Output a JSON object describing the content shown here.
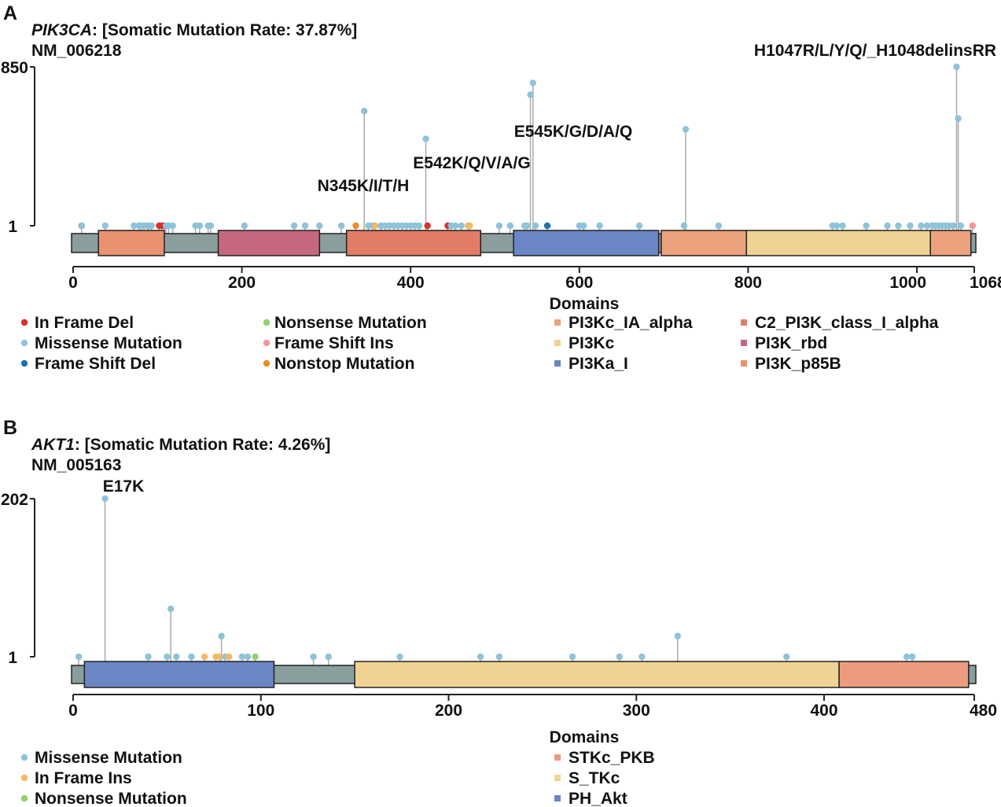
{
  "colors": {
    "missense": "#8ec3d9",
    "in_frame_del": "#d7312c",
    "frame_shift_del": "#1b75ac",
    "nonsense": "#95d06f",
    "frame_shift_ins": "#f4989a",
    "nonstop": "#f08a27",
    "in_frame_ins": "#f5b964",
    "backbone": "#8a9e9e",
    "stem": "#aaaaaa",
    "PI3Kc_IA_alpha": "#eca27c",
    "C2_PI3K_class_I_alpha": "#e17d66",
    "PI3Kc": "#f0d293",
    "PI3K_rbd": "#c5687f",
    "PI3Ka_I": "#6b86c5",
    "PI3K_p85B": "#ea926f",
    "STKc_PKB": "#eb9c7e",
    "S_TKc": "#f0d293",
    "PH_Akt": "#6b86c5"
  },
  "chart_data": [
    {
      "type": "lollipop",
      "panel": "A",
      "gene": "PIK3CA",
      "title_rest": ": [Somatic Mutation Rate: 37.87%]",
      "transcript": "NM_006218",
      "protein_length": 1068,
      "y_ticks": [
        "850",
        "1"
      ],
      "y_max": 850,
      "x_ticks": [
        "0",
        "200",
        "400",
        "600",
        "800",
        "1000",
        "1068"
      ],
      "x_tick_values": [
        0,
        200,
        400,
        600,
        800,
        1000,
        1068
      ],
      "domains": [
        {
          "name": "PI3K_p85B",
          "start": 30,
          "end": 108
        },
        {
          "name": "PI3K_rbd",
          "start": 172,
          "end": 292
        },
        {
          "name": "C2_PI3K_class_I_alpha",
          "start": 324,
          "end": 483
        },
        {
          "name": "PI3Ka_I",
          "start": 522,
          "end": 694
        },
        {
          "name": "PI3Kc_IA_alpha",
          "start": 697,
          "end": 798
        },
        {
          "name": "PI3Kc",
          "start": 798,
          "end": 1016
        },
        {
          "name": "PI3Kc_IA_alpha",
          "start": 1016,
          "end": 1064
        }
      ],
      "annotations": [
        {
          "label": "N345K/I/T/H",
          "pos": 345
        },
        {
          "label": "E542K/Q/V/A/G",
          "pos": 542
        },
        {
          "label": "E545K/G/D/A/Q",
          "pos": 545
        },
        {
          "label": "H1047R/L/Y/Q/_H1048delinsRR",
          "pos": 1047
        }
      ],
      "mutations": [
        {
          "pos": 10,
          "count": 1,
          "type": "in_frame_del"
        },
        {
          "pos": 10,
          "count": 1,
          "type": "missense"
        },
        {
          "pos": 38,
          "count": 1,
          "type": "missense"
        },
        {
          "pos": 72,
          "count": 1,
          "type": "missense"
        },
        {
          "pos": 78,
          "count": 1,
          "type": "missense"
        },
        {
          "pos": 81,
          "count": 1,
          "type": "missense"
        },
        {
          "pos": 84,
          "count": 1,
          "type": "missense"
        },
        {
          "pos": 88,
          "count": 1,
          "type": "missense"
        },
        {
          "pos": 90,
          "count": 1,
          "type": "missense"
        },
        {
          "pos": 93,
          "count": 1,
          "type": "missense"
        },
        {
          "pos": 102,
          "count": 1,
          "type": "in_frame_del"
        },
        {
          "pos": 105,
          "count": 1,
          "type": "in_frame_del"
        },
        {
          "pos": 108,
          "count": 1,
          "type": "in_frame_del"
        },
        {
          "pos": 110,
          "count": 1,
          "type": "missense"
        },
        {
          "pos": 113,
          "count": 1,
          "type": "missense"
        },
        {
          "pos": 118,
          "count": 1,
          "type": "missense"
        },
        {
          "pos": 145,
          "count": 1,
          "type": "missense"
        },
        {
          "pos": 150,
          "count": 1,
          "type": "missense"
        },
        {
          "pos": 160,
          "count": 1,
          "type": "missense"
        },
        {
          "pos": 163,
          "count": 1,
          "type": "missense"
        },
        {
          "pos": 203,
          "count": 1,
          "type": "missense"
        },
        {
          "pos": 262,
          "count": 1,
          "type": "missense"
        },
        {
          "pos": 275,
          "count": 1,
          "type": "missense"
        },
        {
          "pos": 292,
          "count": 1,
          "type": "missense"
        },
        {
          "pos": 318,
          "count": 1,
          "type": "missense"
        },
        {
          "pos": 335,
          "count": 1,
          "type": "nonstop"
        },
        {
          "pos": 345,
          "count": 130,
          "type": "missense"
        },
        {
          "pos": 350,
          "count": 1,
          "type": "missense"
        },
        {
          "pos": 355,
          "count": 1,
          "type": "missense"
        },
        {
          "pos": 358,
          "count": 1,
          "type": "in_frame_ins"
        },
        {
          "pos": 365,
          "count": 1,
          "type": "missense"
        },
        {
          "pos": 370,
          "count": 1,
          "type": "missense"
        },
        {
          "pos": 375,
          "count": 1,
          "type": "missense"
        },
        {
          "pos": 380,
          "count": 1,
          "type": "missense"
        },
        {
          "pos": 385,
          "count": 1,
          "type": "missense"
        },
        {
          "pos": 390,
          "count": 1,
          "type": "missense"
        },
        {
          "pos": 395,
          "count": 1,
          "type": "missense"
        },
        {
          "pos": 400,
          "count": 1,
          "type": "missense"
        },
        {
          "pos": 405,
          "count": 1,
          "type": "missense"
        },
        {
          "pos": 410,
          "count": 1,
          "type": "missense"
        },
        {
          "pos": 418,
          "count": 40,
          "type": "missense"
        },
        {
          "pos": 420,
          "count": 1,
          "type": "in_frame_del"
        },
        {
          "pos": 444,
          "count": 1,
          "type": "in_frame_del"
        },
        {
          "pos": 448,
          "count": 1,
          "type": "missense"
        },
        {
          "pos": 453,
          "count": 1,
          "type": "missense"
        },
        {
          "pos": 460,
          "count": 1,
          "type": "missense"
        },
        {
          "pos": 468,
          "count": 1,
          "type": "in_frame_ins"
        },
        {
          "pos": 470,
          "count": 1,
          "type": "in_frame_ins"
        },
        {
          "pos": 505,
          "count": 1,
          "type": "missense"
        },
        {
          "pos": 518,
          "count": 1,
          "type": "missense"
        },
        {
          "pos": 535,
          "count": 1,
          "type": "missense"
        },
        {
          "pos": 538,
          "count": 1,
          "type": "missense"
        },
        {
          "pos": 542,
          "count": 260,
          "type": "missense"
        },
        {
          "pos": 545,
          "count": 430,
          "type": "missense"
        },
        {
          "pos": 548,
          "count": 1,
          "type": "missense"
        },
        {
          "pos": 562,
          "count": 1,
          "type": "frame_shift_del"
        },
        {
          "pos": 600,
          "count": 1,
          "type": "missense"
        },
        {
          "pos": 605,
          "count": 1,
          "type": "missense"
        },
        {
          "pos": 624,
          "count": 1,
          "type": "missense"
        },
        {
          "pos": 671,
          "count": 1,
          "type": "missense"
        },
        {
          "pos": 724,
          "count": 1,
          "type": "missense"
        },
        {
          "pos": 726,
          "count": 60,
          "type": "missense"
        },
        {
          "pos": 765,
          "count": 1,
          "type": "missense"
        },
        {
          "pos": 900,
          "count": 1,
          "type": "missense"
        },
        {
          "pos": 905,
          "count": 1,
          "type": "missense"
        },
        {
          "pos": 912,
          "count": 1,
          "type": "missense"
        },
        {
          "pos": 940,
          "count": 1,
          "type": "missense"
        },
        {
          "pos": 965,
          "count": 1,
          "type": "missense"
        },
        {
          "pos": 978,
          "count": 1,
          "type": "missense"
        },
        {
          "pos": 992,
          "count": 1,
          "type": "missense"
        },
        {
          "pos": 1005,
          "count": 1,
          "type": "missense"
        },
        {
          "pos": 1012,
          "count": 1,
          "type": "missense"
        },
        {
          "pos": 1018,
          "count": 1,
          "type": "missense"
        },
        {
          "pos": 1022,
          "count": 1,
          "type": "missense"
        },
        {
          "pos": 1026,
          "count": 1,
          "type": "missense"
        },
        {
          "pos": 1030,
          "count": 1,
          "type": "missense"
        },
        {
          "pos": 1034,
          "count": 1,
          "type": "missense"
        },
        {
          "pos": 1038,
          "count": 1,
          "type": "missense"
        },
        {
          "pos": 1043,
          "count": 1,
          "type": "missense"
        },
        {
          "pos": 1047,
          "count": 850,
          "type": "missense"
        },
        {
          "pos": 1049,
          "count": 95,
          "type": "missense"
        },
        {
          "pos": 1052,
          "count": 1,
          "type": "missense"
        },
        {
          "pos": 1066,
          "count": 1,
          "type": "frame_shift_ins"
        }
      ],
      "legend_mutations": [
        {
          "type": "in_frame_del",
          "label": "In Frame Del"
        },
        {
          "type": "missense",
          "label": "Missense Mutation"
        },
        {
          "type": "frame_shift_del",
          "label": "Frame Shift Del"
        },
        {
          "type": "nonsense",
          "label": "Nonsense Mutation"
        },
        {
          "type": "frame_shift_ins",
          "label": "Frame Shift Ins"
        },
        {
          "type": "nonstop",
          "label": "Nonstop Mutation"
        }
      ],
      "legend_domains_title": "Domains",
      "legend_domains": [
        "PI3Kc_IA_alpha",
        "PI3Kc",
        "PI3Ka_I",
        "C2_PI3K_class_I_alpha",
        "PI3K_rbd",
        "PI3K_p85B"
      ]
    },
    {
      "type": "lollipop",
      "panel": "B",
      "gene": "AKT1",
      "title_rest": ": [Somatic Mutation Rate: 4.26%]",
      "transcript": "NM_005163",
      "protein_length": 480,
      "y_ticks": [
        "202",
        "1"
      ],
      "y_max": 202,
      "x_ticks": [
        "0",
        "100",
        "200",
        "300",
        "400",
        "480"
      ],
      "x_tick_values": [
        0,
        100,
        200,
        300,
        400,
        480
      ],
      "domains": [
        {
          "name": "PH_Akt",
          "start": 6,
          "end": 107
        },
        {
          "name": "S_TKc",
          "start": 150,
          "end": 408
        },
        {
          "name": "STKc_PKB",
          "start": 408,
          "end": 477
        }
      ],
      "annotations": [
        {
          "label": "E17K",
          "pos": 17
        }
      ],
      "mutations": [
        {
          "pos": 3,
          "count": 1,
          "type": "missense"
        },
        {
          "pos": 17,
          "count": 202,
          "type": "missense"
        },
        {
          "pos": 40,
          "count": 1,
          "type": "missense"
        },
        {
          "pos": 50,
          "count": 1,
          "type": "missense"
        },
        {
          "pos": 52,
          "count": 5,
          "type": "missense"
        },
        {
          "pos": 55,
          "count": 1,
          "type": "missense"
        },
        {
          "pos": 63,
          "count": 1,
          "type": "missense"
        },
        {
          "pos": 70,
          "count": 1,
          "type": "in_frame_ins"
        },
        {
          "pos": 76,
          "count": 1,
          "type": "in_frame_ins"
        },
        {
          "pos": 78,
          "count": 1,
          "type": "in_frame_ins"
        },
        {
          "pos": 79,
          "count": 2,
          "type": "missense"
        },
        {
          "pos": 81,
          "count": 1,
          "type": "missense"
        },
        {
          "pos": 83,
          "count": 1,
          "type": "in_frame_ins"
        },
        {
          "pos": 90,
          "count": 1,
          "type": "missense"
        },
        {
          "pos": 93,
          "count": 1,
          "type": "missense"
        },
        {
          "pos": 97,
          "count": 1,
          "type": "nonsense"
        },
        {
          "pos": 128,
          "count": 1,
          "type": "missense"
        },
        {
          "pos": 136,
          "count": 1,
          "type": "missense"
        },
        {
          "pos": 174,
          "count": 1,
          "type": "missense"
        },
        {
          "pos": 217,
          "count": 1,
          "type": "missense"
        },
        {
          "pos": 227,
          "count": 1,
          "type": "missense"
        },
        {
          "pos": 266,
          "count": 1,
          "type": "missense"
        },
        {
          "pos": 291,
          "count": 1,
          "type": "missense"
        },
        {
          "pos": 303,
          "count": 1,
          "type": "missense"
        },
        {
          "pos": 322,
          "count": 2,
          "type": "missense"
        },
        {
          "pos": 380,
          "count": 1,
          "type": "missense"
        },
        {
          "pos": 444,
          "count": 1,
          "type": "missense"
        },
        {
          "pos": 447,
          "count": 1,
          "type": "missense"
        }
      ],
      "legend_mutations": [
        {
          "type": "missense",
          "label": "Missense Mutation"
        },
        {
          "type": "in_frame_ins",
          "label": "In Frame Ins"
        },
        {
          "type": "nonsense",
          "label": "Nonsense Mutation"
        }
      ],
      "legend_domains_title": "Domains",
      "legend_domains": [
        "STKc_PKB",
        "S_TKc",
        "PH_Akt"
      ]
    }
  ]
}
